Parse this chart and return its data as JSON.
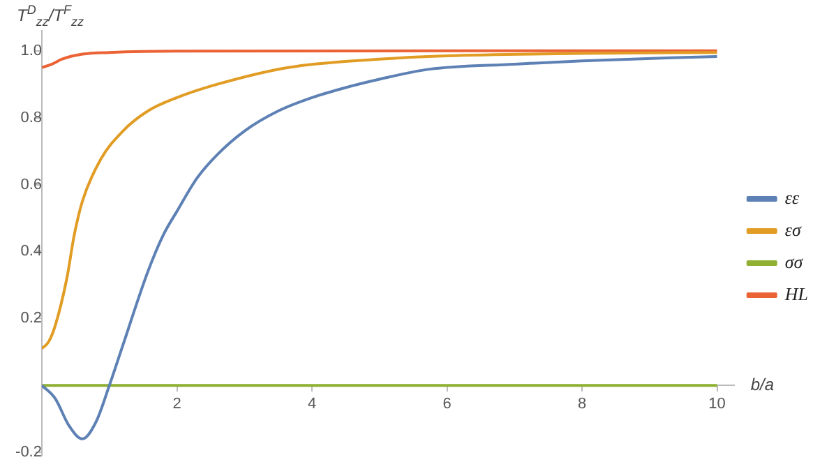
{
  "chart_data": {
    "type": "line",
    "ylabel": "T$^{D}$$_{zz}$/T$^{F}$$_{zz}$",
    "xlabel": "b/a",
    "xlim": [
      0,
      10.25
    ],
    "ylim": [
      -0.21,
      1.06
    ],
    "xticks": [
      2,
      4,
      6,
      8,
      10
    ],
    "yticks": [
      -0.2,
      0.2,
      0.4,
      0.6,
      0.8,
      {
        "value": 1,
        "label": "1.0"
      }
    ],
    "grid": false,
    "legend": "right",
    "marker": "none",
    "line_style": "solid",
    "series": [
      {
        "name": "εε",
        "color": "#5e81b5",
        "x": [
          0,
          0.2,
          0.4,
          0.6,
          0.8,
          1.0,
          1.2,
          1.57,
          1.8,
          2.0,
          2.3,
          2.6,
          3.0,
          3.5,
          4.0,
          4.5,
          5.0,
          5.74,
          7,
          8,
          10
        ],
        "values": [
          0,
          -0.04,
          -0.12,
          -0.16,
          -0.11,
          0,
          0.12,
          0.34,
          0.45,
          0.52,
          0.62,
          0.69,
          0.76,
          0.82,
          0.86,
          0.89,
          0.915,
          0.945,
          0.96,
          0.97,
          0.983
        ]
      },
      {
        "name": "εσ",
        "color": "#e19c24",
        "x": [
          0,
          0.1,
          0.2,
          0.37,
          0.48,
          0.6,
          0.87,
          1.2,
          1.57,
          2,
          2.6,
          3.65,
          5,
          6,
          8,
          10
        ],
        "values": [
          0.11,
          0.13,
          0.18,
          0.32,
          0.45,
          0.55,
          0.675,
          0.76,
          0.82,
          0.86,
          0.9,
          0.95,
          0.975,
          0.985,
          0.992,
          0.995
        ]
      },
      {
        "name": "σσ",
        "color": "#8fb032",
        "x": [
          0,
          10
        ],
        "values": [
          0,
          0
        ]
      },
      {
        "name": "HL",
        "color": "#eb6235",
        "x": [
          0,
          0.15,
          0.3,
          0.6,
          1,
          2,
          10
        ],
        "values": [
          0.95,
          0.96,
          0.975,
          0.99,
          0.995,
          0.999,
          1.0
        ]
      }
    ]
  }
}
